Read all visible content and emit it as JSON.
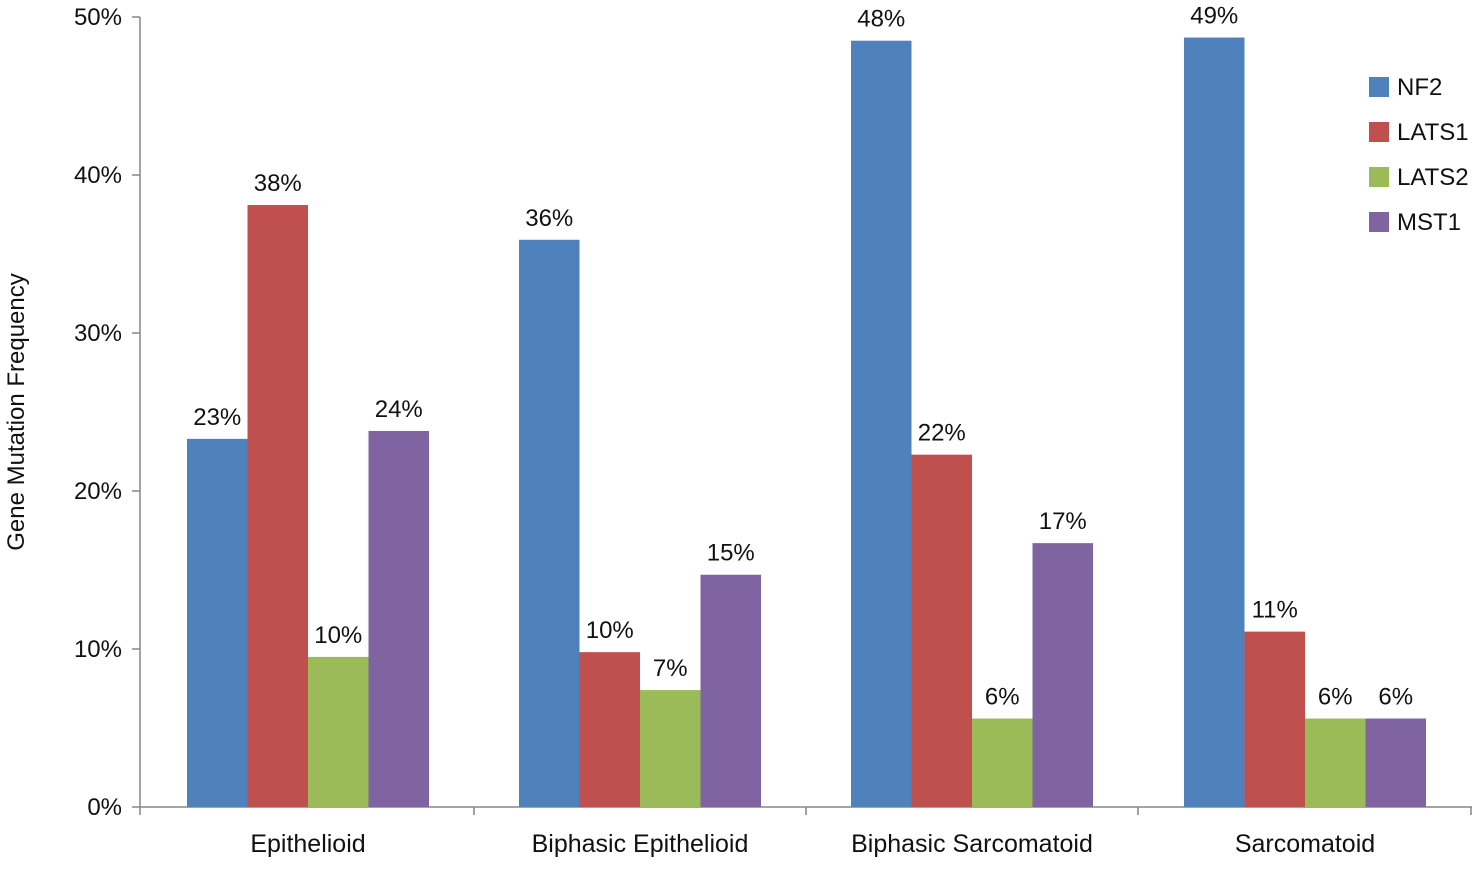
{
  "chart_data": {
    "type": "bar",
    "title": "",
    "xlabel": "",
    "ylabel": "Gene Mutation Frequency",
    "ylim": [
      0,
      50
    ],
    "y_ticks": [
      "0%",
      "10%",
      "20%",
      "30%",
      "40%",
      "50%"
    ],
    "y_tick_values": [
      0,
      10,
      20,
      30,
      40,
      50
    ],
    "categories": [
      "Epithelioid",
      "Biphasic Epithelioid",
      "Biphasic Sarcomatoid",
      "Sarcomatoid"
    ],
    "series": [
      {
        "name": "NF2",
        "color": "#4F81BD",
        "values": [
          23.3,
          35.9,
          48.5,
          48.7
        ],
        "labels": [
          "23%",
          "36%",
          "48%",
          "49%"
        ]
      },
      {
        "name": "LATS1",
        "color": "#C0504D",
        "values": [
          38.1,
          9.8,
          22.3,
          11.1
        ],
        "labels": [
          "38%",
          "10%",
          "22%",
          "11%"
        ]
      },
      {
        "name": "LATS2",
        "color": "#9BBB59",
        "values": [
          9.5,
          7.4,
          5.6,
          5.6
        ],
        "labels": [
          "10%",
          "7%",
          "6%",
          "6%"
        ]
      },
      {
        "name": "MST1",
        "color": "#8064A2",
        "values": [
          23.8,
          14.7,
          16.7,
          5.6
        ],
        "labels": [
          "24%",
          "15%",
          "17%",
          "6%"
        ]
      }
    ],
    "grid": false,
    "legend_position": "top-right",
    "axis_color": "#868686"
  }
}
